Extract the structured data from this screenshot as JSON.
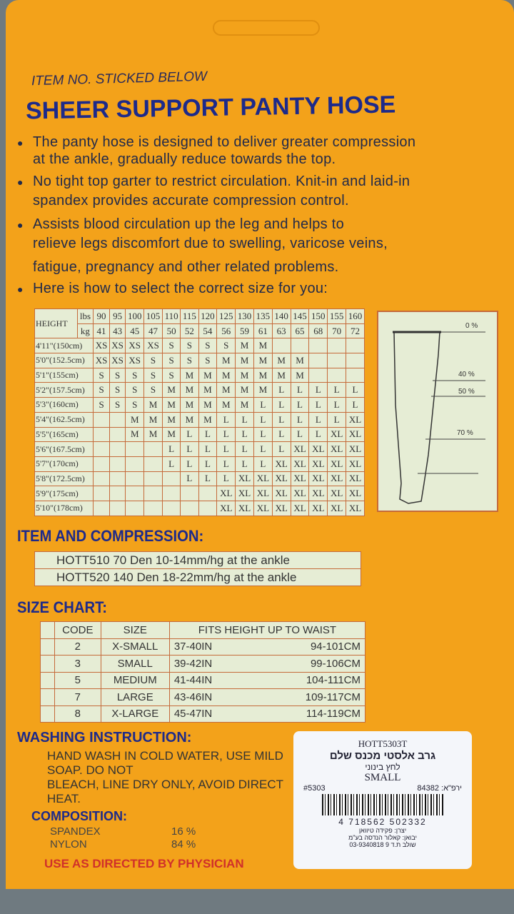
{
  "header": {
    "item_no": "ITEM NO. STICKED BELOW",
    "title": "SHEER SUPPORT PANTY HOSE"
  },
  "bullets": [
    "The panty hose is designed to deliver greater compression",
    "at the ankle, gradually reduce towards the top.",
    "No tight top garter to restrict circulation. Knit-in and laid-in",
    "spandex provides accurate compression control.",
    "Assists blood circulation up the leg and helps to",
    "relieve legs discomfort due to swelling, varicose veins,",
    "fatigue, pregnancy and other related problems.",
    "Here is how to select the correct size for you:"
  ],
  "size_table": {
    "height_label": "HEIGHT",
    "lbs_label": "lbs",
    "kg_label": "kg",
    "lbs": [
      "90",
      "95",
      "100",
      "105",
      "110",
      "115",
      "120",
      "125",
      "130",
      "135",
      "140",
      "145",
      "150",
      "155",
      "160"
    ],
    "kg": [
      "41",
      "43",
      "45",
      "47",
      "50",
      "52",
      "54",
      "56",
      "59",
      "61",
      "63",
      "65",
      "68",
      "70",
      "72"
    ],
    "rows": [
      {
        "h": "4'11\"(150cm)",
        "v": [
          "XS",
          "XS",
          "XS",
          "XS",
          "S",
          "S",
          "S",
          "S",
          "M",
          "M",
          "",
          "",
          "",
          "",
          ""
        ]
      },
      {
        "h": "5'0\"(152.5cm)",
        "v": [
          "XS",
          "XS",
          "XS",
          "S",
          "S",
          "S",
          "S",
          "M",
          "M",
          "M",
          "M",
          "M",
          "",
          "",
          ""
        ]
      },
      {
        "h": "5'1\"(155cm)",
        "v": [
          "S",
          "S",
          "S",
          "S",
          "S",
          "M",
          "M",
          "M",
          "M",
          "M",
          "M",
          "M",
          "",
          "",
          ""
        ]
      },
      {
        "h": "5'2\"(157.5cm)",
        "v": [
          "S",
          "S",
          "S",
          "S",
          "M",
          "M",
          "M",
          "M",
          "M",
          "M",
          "L",
          "L",
          "L",
          "L",
          "L"
        ]
      },
      {
        "h": "5'3\"(160cm)",
        "v": [
          "S",
          "S",
          "S",
          "M",
          "M",
          "M",
          "M",
          "M",
          "M",
          "L",
          "L",
          "L",
          "L",
          "L",
          "L"
        ]
      },
      {
        "h": "5'4\"(162.5cm)",
        "v": [
          "",
          "",
          "M",
          "M",
          "M",
          "M",
          "M",
          "L",
          "L",
          "L",
          "L",
          "L",
          "L",
          "L",
          "XL"
        ]
      },
      {
        "h": "5'5\"(165cm)",
        "v": [
          "",
          "",
          "M",
          "M",
          "M",
          "L",
          "L",
          "L",
          "L",
          "L",
          "L",
          "L",
          "L",
          "XL",
          "XL"
        ]
      },
      {
        "h": "5'6\"(167.5cm)",
        "v": [
          "",
          "",
          "",
          "",
          "L",
          "L",
          "L",
          "L",
          "L",
          "L",
          "L",
          "XL",
          "XL",
          "XL",
          "XL"
        ]
      },
      {
        "h": "5'7\"(170cm)",
        "v": [
          "",
          "",
          "",
          "",
          "L",
          "L",
          "L",
          "L",
          "L",
          "L",
          "XL",
          "XL",
          "XL",
          "XL",
          "XL"
        ]
      },
      {
        "h": "5'8\"(172.5cm)",
        "v": [
          "",
          "",
          "",
          "",
          "",
          "L",
          "L",
          "L",
          "XL",
          "XL",
          "XL",
          "XL",
          "XL",
          "XL",
          "XL"
        ]
      },
      {
        "h": "5'9\"(175cm)",
        "v": [
          "",
          "",
          "",
          "",
          "",
          "",
          "",
          "XL",
          "XL",
          "XL",
          "XL",
          "XL",
          "XL",
          "XL",
          "XL"
        ]
      },
      {
        "h": "5'10\"(178cm)",
        "v": [
          "",
          "",
          "",
          "",
          "",
          "",
          "",
          "XL",
          "XL",
          "XL",
          "XL",
          "XL",
          "XL",
          "XL",
          "XL"
        ]
      }
    ]
  },
  "leg_diagram": {
    "levels": [
      "0 %",
      "40 %",
      "50 %",
      "70 %"
    ]
  },
  "compression": {
    "title": "ITEM AND COMPRESSION:",
    "rows": [
      "HOTT510  70 Den 10-14mm/hg at the ankle",
      "HOTT520  140 Den 18-22mm/hg at the ankle"
    ]
  },
  "size_chart": {
    "title": "SIZE CHART:",
    "headers": [
      "CODE",
      "SIZE",
      "FITS HEIGHT UP TO WAIST"
    ],
    "rows": [
      [
        "2",
        "X-SMALL",
        "37-40IN",
        "94-101CM"
      ],
      [
        "3",
        "SMALL",
        "39-42IN",
        "99-106CM"
      ],
      [
        "5",
        "MEDIUM",
        "41-44IN",
        "104-111CM"
      ],
      [
        "7",
        "LARGE",
        "43-46IN",
        "109-117CM"
      ],
      [
        "8",
        "X-LARGE",
        "45-47IN",
        "114-119CM"
      ]
    ]
  },
  "washing": {
    "title": "WASHING INSTRUCTION:",
    "line1": "HAND WASH IN COLD WATER, USE MILD SOAP. DO NOT",
    "line2": "BLEACH, LINE DRY ONLY, AVOID DIRECT HEAT."
  },
  "composition": {
    "title": "COMPOSITION:",
    "items": [
      {
        "name": "SPANDEX",
        "pct": "16 %"
      },
      {
        "name": "NYLON",
        "pct": "84 %"
      }
    ]
  },
  "footer": "USE AS DIRECTED BY PHYSICIAN",
  "sticker": {
    "code": "HOTT5303T",
    "hebrew1": "גרב אלסטי מכנס שלם",
    "hebrew2": "לחץ בינוני",
    "size": "SMALL",
    "num": "#5303",
    "reg": "ירפ\"א: 84382",
    "barcode": "4 718562 502332",
    "hebrew3": "יצרן: פקידה טיוואן",
    "hebrew4": "יבואן: קאלור הנדסה בע\"מ",
    "hebrew5": "שולב ת.ד 9 03-9340818"
  },
  "colors": {
    "card": "#f3a21a",
    "title": "#1d2a8a",
    "table_bg": "#e6edd5",
    "grid": "#c56a3a",
    "footer": "#d0302a"
  }
}
